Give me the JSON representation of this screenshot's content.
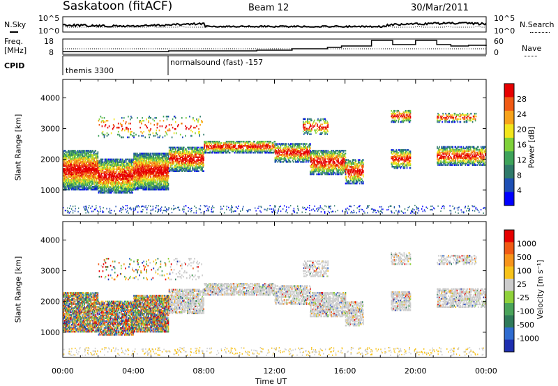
{
  "header": {
    "station": "Saskatoon (fitACF)",
    "beam": "Beam 12",
    "date": "30/Mar/2011"
  },
  "noise_panel": {
    "left_label": "N.Sky",
    "right_label": "N.Search",
    "left_ticks": [
      "10^5",
      "10^0"
    ],
    "right_ticks": [
      "10^5",
      "10^0"
    ]
  },
  "freq_panel": {
    "left_label_1": "Freq.",
    "left_label_2": "[MHz]",
    "left_ticks": [
      "18",
      "8"
    ],
    "right_label": "Nave",
    "right_ticks": [
      "60",
      "0"
    ]
  },
  "cpid": {
    "label": "CPID",
    "modes": [
      {
        "name": "themis 3300",
        "start_hour": 0
      },
      {
        "name": "normalsound (fast) -157",
        "start_hour": 6
      }
    ]
  },
  "colors": {
    "power_scale": [
      "#0000ff",
      "#1e4fb4",
      "#2f7a6a",
      "#3ea35a",
      "#7fd13a",
      "#f2e51c",
      "#f7a21a",
      "#f05a14",
      "#e60000"
    ],
    "velocity_scale": [
      "#1e2fb0",
      "#2f6cd0",
      "#2f7a5a",
      "#4aa35a",
      "#8fd13a",
      "#cccccc",
      "#f7c21a",
      "#f7941a",
      "#f05a14",
      "#e60000"
    ]
  },
  "chart_data": [
    {
      "type": "heatmap",
      "panel": "power",
      "ylabel": "Slant Range [km]",
      "ylim": [
        180,
        4600
      ],
      "yticks": [
        "1000",
        "2000",
        "3000",
        "4000"
      ],
      "xlim_hours": [
        0,
        24
      ],
      "colorbar_label": "Power [dB]",
      "colorbar_ticks": [
        "4",
        "8",
        "12",
        "16",
        "20",
        "24",
        "28"
      ],
      "colorbar_range": [
        0,
        32
      ]
    },
    {
      "type": "heatmap",
      "panel": "velocity",
      "ylabel": "Slant Range [km]",
      "ylim": [
        180,
        4600
      ],
      "yticks": [
        "1000",
        "2000",
        "3000",
        "4000"
      ],
      "xlim_hours": [
        0,
        24
      ],
      "colorbar_label": "Velocity [m s⁻¹]",
      "colorbar_ticks": [
        "1000",
        "500",
        "100",
        "25",
        "-25",
        "-100",
        "-500",
        "-1000"
      ]
    }
  ],
  "x_axis": {
    "ticks": [
      "00:00",
      "04:00",
      "08:00",
      "12:00",
      "16:00",
      "20:00",
      "00:00"
    ],
    "xlabel": "Time UT"
  }
}
